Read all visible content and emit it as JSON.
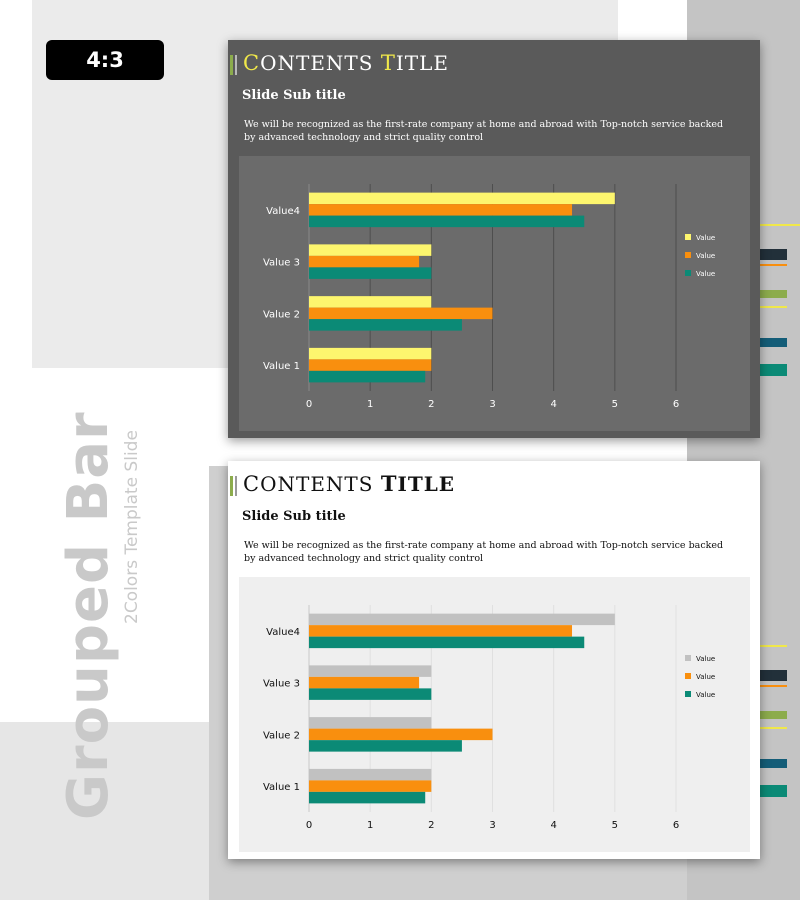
{
  "badge": "4:3",
  "side": {
    "title": "Grouped Bar",
    "subtitle": "2Colors Template Slide"
  },
  "slide_title": {
    "word1": "CONTENTS",
    "word2": "TITLE"
  },
  "slide_subtitle": "Slide Sub title",
  "slide_description": "We will be recognized as the first-rate company at home and abroad with Top-notch service backed by   advanced technology and strict quality control",
  "colors": {
    "dark_slide_bg": "#5a5a5a",
    "dark_chart_bg": "#6b6b6b",
    "light_chart_bg": "#efefef",
    "series_yellow": "#fdf66e",
    "series_gray": "#c1c1c1",
    "series_orange": "#f98f0e",
    "series_teal": "#0b8a76",
    "accent_green": "#8cac4c",
    "title_highlight": "#f0e84a"
  },
  "chart_data": [
    {
      "type": "bar",
      "orientation": "horizontal",
      "theme": "dark",
      "categories": [
        "Value 1",
        "Value 2",
        "Value  3",
        "Value4"
      ],
      "series": [
        {
          "name": "Value",
          "color": "#fdf66e",
          "values": [
            2,
            2,
            2,
            5
          ]
        },
        {
          "name": "Value",
          "color": "#f98f0e",
          "values": [
            2,
            3,
            1.8,
            4.3
          ]
        },
        {
          "name": "Value",
          "color": "#0b8a76",
          "values": [
            1.9,
            2.5,
            2,
            4.5
          ]
        }
      ],
      "xlim": [
        0,
        6
      ],
      "xticks": [
        "0",
        "1",
        "2",
        "3",
        "4",
        "5",
        "6"
      ],
      "grid": true,
      "legend": "right"
    },
    {
      "type": "bar",
      "orientation": "horizontal",
      "theme": "light",
      "categories": [
        "Value 1",
        "Value 2",
        "Value 3",
        "Value4"
      ],
      "series": [
        {
          "name": "Value",
          "color": "#c1c1c1",
          "values": [
            2,
            2,
            2,
            5
          ]
        },
        {
          "name": "Value",
          "color": "#f98f0e",
          "values": [
            2,
            3,
            1.8,
            4.3
          ]
        },
        {
          "name": "Value",
          "color": "#0b8a76",
          "values": [
            1.9,
            2.5,
            2,
            4.5
          ]
        }
      ],
      "xlim": [
        0,
        6
      ],
      "xticks": [
        "0",
        "1",
        "2",
        "3",
        "4",
        "5",
        "6"
      ],
      "grid": true,
      "legend": "right"
    }
  ]
}
